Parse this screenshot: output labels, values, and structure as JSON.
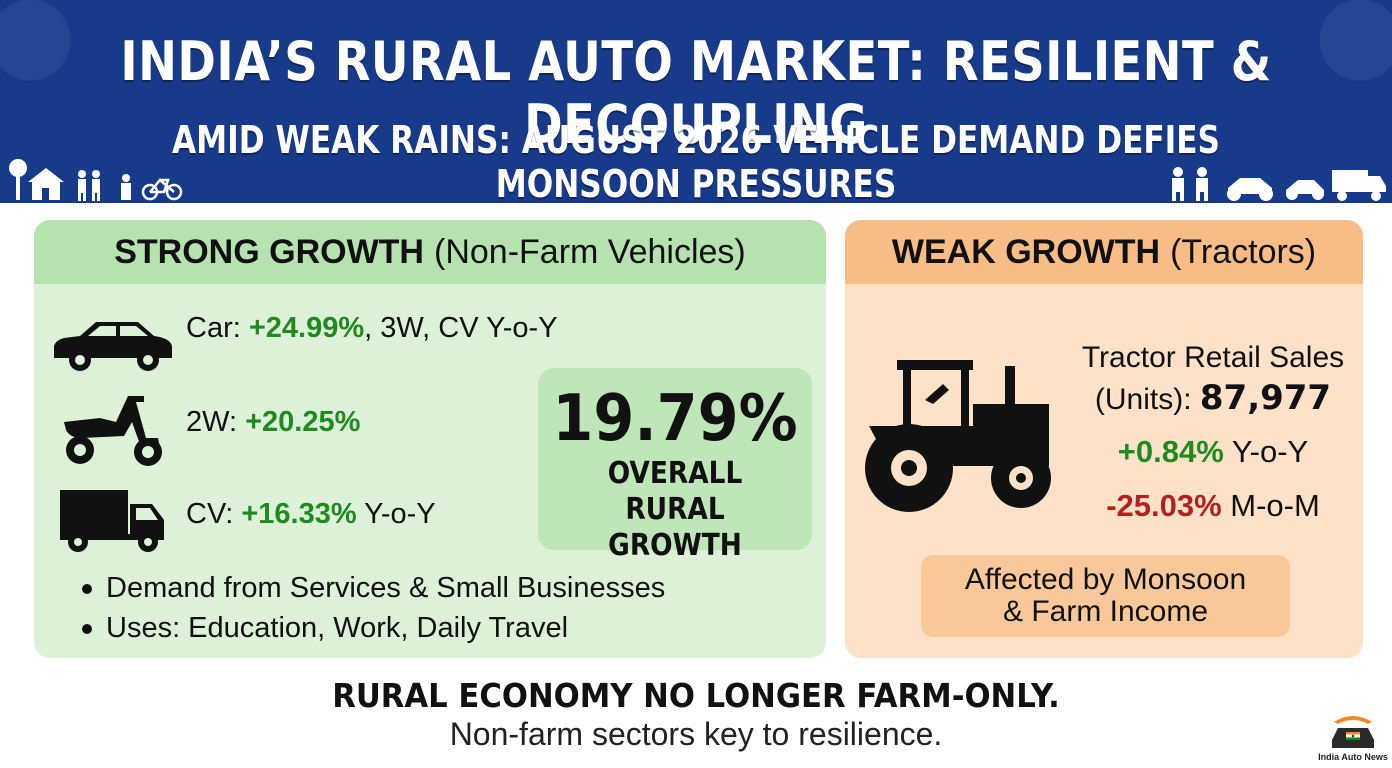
{
  "header": {
    "title": "INDIA’S RURAL AUTO MARKET: RESILIENT & DECOUPLING",
    "subtitle": "AMID WEAK RAINS: AUGUST 2026 VEHICLE DEMAND DEFIES MONSOON PRESSURES",
    "colors": {
      "banner": "#173a8a"
    }
  },
  "strong_panel": {
    "heading_bold": "STRONG GROWTH",
    "heading_rest": "(Non-Farm Vehicles)",
    "rows": [
      {
        "icon": "car-icon",
        "prefix": "Car: ",
        "value": "+24.99%",
        "suffix": ", 3W, CV Y-o-Y"
      },
      {
        "icon": "scooter-icon",
        "prefix": "2W: ",
        "value": "+20.25%",
        "suffix": ""
      },
      {
        "icon": "truck-icon",
        "prefix": "CV: ",
        "value": "+16.33%",
        "suffix": " Y-o-Y"
      }
    ],
    "bullets": [
      "Demand from Services & Small Businesses",
      "Uses: Education, Work, Daily Travel"
    ],
    "overall": {
      "value": "19.79%",
      "label_line1": "OVERALL",
      "label_line2": "RURAL GROWTH"
    },
    "colors": {
      "panel": "#dcf1d8",
      "head": "#b6e2b0",
      "positive": "#1f8a1f"
    }
  },
  "weak_panel": {
    "heading_bold": "WEAK GROWTH",
    "heading_rest": "(Tractors)",
    "icon": "tractor-icon",
    "sales_label_line1": "Tractor Retail Sales",
    "sales_label_line2": "(Units): ",
    "sales_units": "87,977",
    "yoy_value": "+0.84%",
    "yoy_label": " Y-o-Y",
    "mom_value": "-25.03%",
    "mom_label": " M-o-M",
    "note_line1": "Affected by Monsoon",
    "note_line2": "& Farm Income",
    "colors": {
      "panel": "#fde2c9",
      "head": "#f8bd86",
      "negative": "#b3211e"
    }
  },
  "footer": {
    "headline": "RURAL ECONOMY NO LONGER FARM-ONLY.",
    "subline": "Non-farm sectors key to resilience."
  },
  "logo": {
    "text": "India Auto News"
  }
}
